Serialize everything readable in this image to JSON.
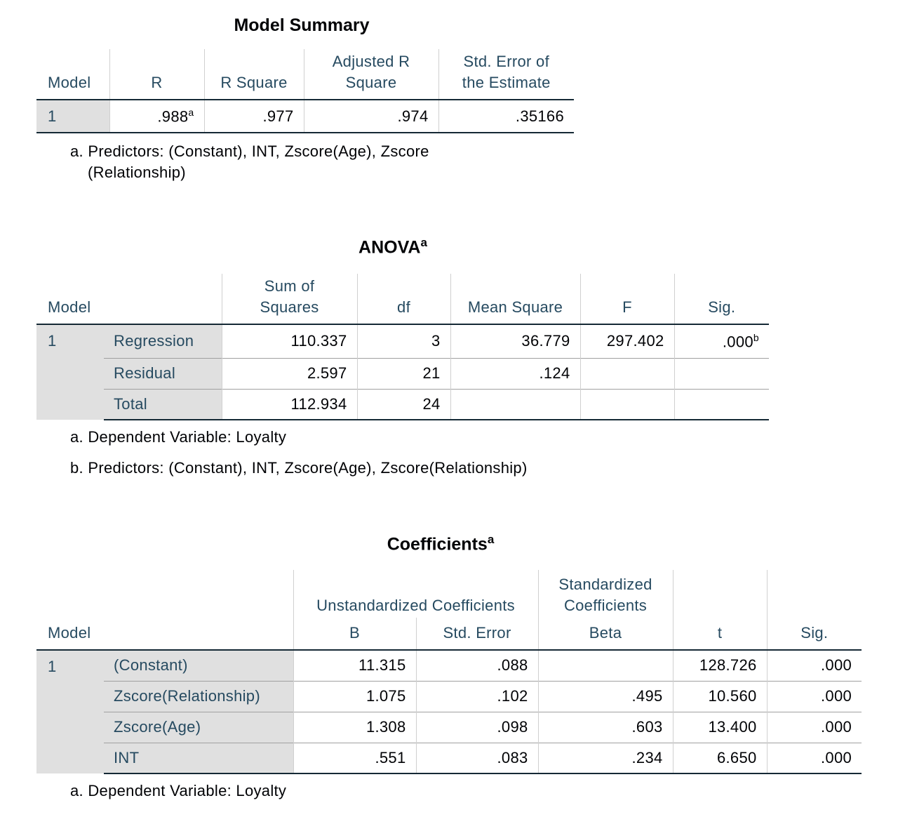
{
  "model_summary": {
    "title": "Model Summary",
    "headers": [
      "Model",
      "R",
      "R Square",
      "Adjusted R Square",
      "Std. Error of the Estimate"
    ],
    "header_lines": {
      "adj1": "Adjusted R",
      "adj2": "Square",
      "se1": "Std. Error of",
      "se2": "the Estimate"
    },
    "row": {
      "model": "1",
      "r": ".988",
      "r_sup": "a",
      "r_square": ".977",
      "adj_r_square": ".974",
      "std_error": ".35166"
    },
    "footnote_a_1": "a. Predictors: (Constant), INT, Zscore(Age), Zscore",
    "footnote_a_2": "(Relationship)"
  },
  "anova": {
    "title": "ANOVA",
    "title_sup": "a",
    "headers": {
      "model": "Model",
      "ss1": "Sum of",
      "ss2": "Squares",
      "df": "df",
      "ms": "Mean Square",
      "f": "F",
      "sig": "Sig."
    },
    "model": "1",
    "rows": [
      {
        "label": "Regression",
        "ss": "110.337",
        "df": "3",
        "ms": "36.779",
        "f": "297.402",
        "sig": ".000",
        "sig_sup": "b"
      },
      {
        "label": "Residual",
        "ss": "2.597",
        "df": "21",
        "ms": ".124",
        "f": "",
        "sig": ""
      },
      {
        "label": "Total",
        "ss": "112.934",
        "df": "24",
        "ms": "",
        "f": "",
        "sig": ""
      }
    ],
    "footnote_a": "a. Dependent Variable: Loyalty",
    "footnote_b": "b. Predictors: (Constant), INT, Zscore(Age), Zscore(Relationship)"
  },
  "coefficients": {
    "title": "Coefficients",
    "title_sup": "a",
    "headers": {
      "model": "Model",
      "unstd": "Unstandardized Coefficients",
      "std1": "Standardized",
      "std2": "Coefficients",
      "b": "B",
      "se": "Std. Error",
      "beta": "Beta",
      "t": "t",
      "sig": "Sig."
    },
    "model": "1",
    "rows": [
      {
        "label": "(Constant)",
        "b": "11.315",
        "se": ".088",
        "beta": "",
        "t": "128.726",
        "sig": ".000"
      },
      {
        "label": "Zscore(Relationship)",
        "b": "1.075",
        "se": ".102",
        "beta": ".495",
        "t": "10.560",
        "sig": ".000"
      },
      {
        "label": "Zscore(Age)",
        "b": "1.308",
        "se": ".098",
        "beta": ".603",
        "t": "13.400",
        "sig": ".000"
      },
      {
        "label": "INT",
        "b": ".551",
        "se": ".083",
        "beta": ".234",
        "t": "6.650",
        "sig": ".000"
      }
    ],
    "footnote_a": "a. Dependent Variable: Loyalty"
  }
}
